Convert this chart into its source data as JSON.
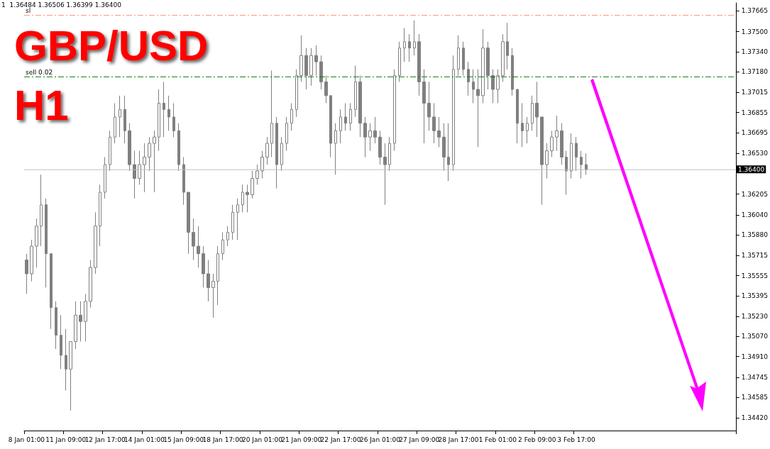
{
  "chart_data": {
    "type": "candlestick",
    "title": "GBP/USD",
    "subtitle": "H1",
    "annotations": [
      "1  1.36484 1.36506 1.36399 1.36400"
    ],
    "categories": [
      "8 Jan 01:00",
      null,
      null,
      null,
      null,
      null,
      null,
      null,
      "11 Jan 09:00",
      null,
      null,
      null,
      null,
      null,
      null,
      null,
      "12 Jan 17:00",
      null,
      null,
      null,
      null,
      null,
      null,
      null,
      "14 Jan 01:00",
      null,
      null,
      null,
      null,
      null,
      null,
      null,
      "15 Jan 09:00",
      null,
      null,
      null,
      null,
      null,
      null,
      null,
      "18 Jan 17:00",
      null,
      null,
      null,
      null,
      null,
      null,
      null,
      "20 Jan 01:00",
      null,
      null,
      null,
      null,
      null,
      null,
      null,
      "21 Jan 09:00",
      null,
      null,
      null,
      null,
      null,
      null,
      null,
      "22 Jan 17:00",
      null,
      null,
      null,
      null,
      null,
      null,
      null,
      "26 Jan 01:00",
      null,
      null,
      null,
      null,
      null,
      null,
      null,
      "27 Jan 09:00",
      null,
      null,
      null,
      null,
      null,
      null,
      null,
      "28 Jan 17:00",
      null,
      null,
      null,
      null,
      null,
      null,
      null,
      "1 Feb 01:00",
      null,
      null,
      null,
      null,
      null,
      null,
      null,
      "2 Feb 09:00",
      null,
      null,
      null,
      null,
      null,
      null,
      null,
      "3 Feb 17:00",
      null,
      null,
      null,
      null,
      null,
      null,
      null,
      null,
      null,
      null,
      null,
      null,
      null,
      null,
      null,
      null,
      null,
      null,
      null,
      null,
      null,
      null,
      null,
      null,
      null,
      null,
      null,
      null,
      null,
      null,
      null,
      null
    ],
    "series": [
      {
        "color": "#808080",
        "ohlc": [
          [
            1.3568,
            1.3573,
            1.3541,
            1.3557
          ],
          [
            1.3557,
            1.3584,
            1.3551,
            1.3579
          ],
          [
            1.3579,
            1.3601,
            1.3562,
            1.3595
          ],
          [
            1.3595,
            1.3636,
            1.3579,
            1.3612
          ],
          [
            1.3612,
            1.3617,
            1.3546,
            1.3573
          ],
          [
            1.3573,
            1.3573,
            1.3513,
            1.353
          ],
          [
            1.353,
            1.3535,
            1.3497,
            1.3508
          ],
          [
            1.3508,
            1.3524,
            1.3481,
            1.3492
          ],
          [
            1.3492,
            1.3513,
            1.3464,
            1.3481
          ],
          [
            1.3481,
            1.3503,
            1.3448,
            1.3503
          ],
          [
            1.3503,
            1.3535,
            1.3497,
            1.3524
          ],
          [
            1.3524,
            1.3535,
            1.3503,
            1.3519
          ],
          [
            1.3519,
            1.3541,
            1.3503,
            1.3535
          ],
          [
            1.3535,
            1.3568,
            1.353,
            1.3562
          ],
          [
            1.3562,
            1.3606,
            1.3557,
            1.3595
          ],
          [
            1.3595,
            1.3628,
            1.3579,
            1.3622
          ],
          [
            1.3622,
            1.365,
            1.3617,
            1.3644
          ],
          [
            1.3644,
            1.3671,
            1.3639,
            1.3666
          ],
          [
            1.3666,
            1.3693,
            1.3661,
            1.3682
          ],
          [
            1.3682,
            1.3699,
            1.3666,
            1.3688
          ],
          [
            1.3688,
            1.3699,
            1.3661,
            1.3671
          ],
          [
            1.3671,
            1.3677,
            1.3639,
            1.3644
          ],
          [
            1.3644,
            1.3655,
            1.3617,
            1.3633
          ],
          [
            1.3633,
            1.3655,
            1.3628,
            1.3644
          ],
          [
            1.3644,
            1.3661,
            1.3622,
            1.365
          ],
          [
            1.365,
            1.3666,
            1.3639,
            1.3661
          ],
          [
            1.3661,
            1.3671,
            1.3622,
            1.3666
          ],
          [
            1.3666,
            1.3704,
            1.3655,
            1.3693
          ],
          [
            1.3693,
            1.371,
            1.3666,
            1.3688
          ],
          [
            1.3688,
            1.3699,
            1.3671,
            1.3682
          ],
          [
            1.3682,
            1.3693,
            1.3666,
            1.3671
          ],
          [
            1.3671,
            1.3677,
            1.3639,
            1.3644
          ],
          [
            1.3644,
            1.365,
            1.3612,
            1.3622
          ],
          [
            1.3622,
            1.3622,
            1.3573,
            1.359
          ],
          [
            1.359,
            1.3601,
            1.3568,
            1.3579
          ],
          [
            1.3579,
            1.3595,
            1.3562,
            1.3573
          ],
          [
            1.3573,
            1.3579,
            1.3546,
            1.3557
          ],
          [
            1.3557,
            1.3568,
            1.3535,
            1.3546
          ],
          [
            1.3546,
            1.3557,
            1.3522,
            1.3551
          ],
          [
            1.3551,
            1.3579,
            1.3532,
            1.3573
          ],
          [
            1.3573,
            1.359,
            1.3568,
            1.3584
          ],
          [
            1.3584,
            1.3595,
            1.3579,
            1.359
          ],
          [
            1.359,
            1.3612,
            1.3584,
            1.3606
          ],
          [
            1.3606,
            1.3617,
            1.3584,
            1.3612
          ],
          [
            1.3612,
            1.3628,
            1.3606,
            1.3622
          ],
          [
            1.3622,
            1.3628,
            1.3606,
            1.362
          ],
          [
            1.362,
            1.3639,
            1.3617,
            1.3633
          ],
          [
            1.3633,
            1.3644,
            1.3628,
            1.3639
          ],
          [
            1.3639,
            1.3655,
            1.3633,
            1.365
          ],
          [
            1.365,
            1.3666,
            1.3644,
            1.3661
          ],
          [
            1.3661,
            1.3719,
            1.365,
            1.3677
          ],
          [
            1.3677,
            1.3682,
            1.3625,
            1.3644
          ],
          [
            1.3644,
            1.3666,
            1.3639,
            1.3661
          ],
          [
            1.3661,
            1.3682,
            1.3655,
            1.3677
          ],
          [
            1.3677,
            1.3693,
            1.3671,
            1.3688
          ],
          [
            1.3688,
            1.372,
            1.3682,
            1.3715
          ],
          [
            1.3715,
            1.3747,
            1.371,
            1.3731
          ],
          [
            1.3731,
            1.3737,
            1.3704,
            1.3715
          ],
          [
            1.3715,
            1.3737,
            1.3707,
            1.3731
          ],
          [
            1.3731,
            1.3739,
            1.3715,
            1.3726
          ],
          [
            1.3726,
            1.3731,
            1.3704,
            1.371
          ],
          [
            1.371,
            1.3715,
            1.3693,
            1.3699
          ],
          [
            1.3699,
            1.3699,
            1.365,
            1.3661
          ],
          [
            1.3661,
            1.3677,
            1.3636,
            1.3671
          ],
          [
            1.3671,
            1.3688,
            1.3661,
            1.3682
          ],
          [
            1.3682,
            1.3693,
            1.3671,
            1.3677
          ],
          [
            1.3677,
            1.3693,
            1.3671,
            1.3688
          ],
          [
            1.3688,
            1.3723,
            1.3682,
            1.371
          ],
          [
            1.371,
            1.3715,
            1.3666,
            1.3677
          ],
          [
            1.3677,
            1.3682,
            1.365,
            1.3666
          ],
          [
            1.3666,
            1.3677,
            1.3655,
            1.3671
          ],
          [
            1.3671,
            1.3682,
            1.3661,
            1.3666
          ],
          [
            1.3666,
            1.3671,
            1.3644,
            1.365
          ],
          [
            1.365,
            1.3661,
            1.3612,
            1.3644
          ],
          [
            1.3644,
            1.3666,
            1.3639,
            1.3661
          ],
          [
            1.3661,
            1.372,
            1.3655,
            1.3715
          ],
          [
            1.3715,
            1.3742,
            1.371,
            1.3737
          ],
          [
            1.3737,
            1.3753,
            1.3726,
            1.3742
          ],
          [
            1.3742,
            1.3748,
            1.3726,
            1.3737
          ],
          [
            1.3737,
            1.3759,
            1.3731,
            1.3742
          ],
          [
            1.3742,
            1.3748,
            1.3699,
            1.371
          ],
          [
            1.371,
            1.372,
            1.3661,
            1.3693
          ],
          [
            1.3693,
            1.371,
            1.3671,
            1.3682
          ],
          [
            1.3682,
            1.3693,
            1.3661,
            1.3671
          ],
          [
            1.3671,
            1.3682,
            1.3658,
            1.3666
          ],
          [
            1.3666,
            1.3677,
            1.3639,
            1.365
          ],
          [
            1.365,
            1.3677,
            1.3631,
            1.3644
          ],
          [
            1.3644,
            1.3731,
            1.3639,
            1.372
          ],
          [
            1.372,
            1.3747,
            1.3715,
            1.3737
          ],
          [
            1.3737,
            1.3742,
            1.3715,
            1.372
          ],
          [
            1.372,
            1.3726,
            1.3699,
            1.371
          ],
          [
            1.371,
            1.372,
            1.3693,
            1.3704
          ],
          [
            1.3704,
            1.372,
            1.3658,
            1.3699
          ],
          [
            1.3699,
            1.3752,
            1.3693,
            1.3737
          ],
          [
            1.3737,
            1.3742,
            1.3704,
            1.3715
          ],
          [
            1.3715,
            1.372,
            1.3693,
            1.3704
          ],
          [
            1.3704,
            1.372,
            1.3693,
            1.3715
          ],
          [
            1.3715,
            1.3748,
            1.371,
            1.3742
          ],
          [
            1.3742,
            1.3757,
            1.372,
            1.3731
          ],
          [
            1.3731,
            1.3737,
            1.3699,
            1.3704
          ],
          [
            1.3704,
            1.3704,
            1.3661,
            1.3677
          ],
          [
            1.3677,
            1.3693,
            1.3658,
            1.3671
          ],
          [
            1.3671,
            1.3682,
            1.3661,
            1.3677
          ],
          [
            1.3677,
            1.3699,
            1.3671,
            1.3693
          ],
          [
            1.3693,
            1.371,
            1.3666,
            1.3682
          ],
          [
            1.3682,
            1.3682,
            1.3612,
            1.3644
          ],
          [
            1.3644,
            1.3661,
            1.3633,
            1.3655
          ],
          [
            1.3655,
            1.3671,
            1.365,
            1.3666
          ],
          [
            1.3666,
            1.3683,
            1.3655,
            1.3671
          ],
          [
            1.3671,
            1.3677,
            1.3644,
            1.365
          ],
          [
            1.365,
            1.3655,
            1.362,
            1.3639
          ],
          [
            1.3639,
            1.3669,
            1.3633,
            1.3661
          ],
          [
            1.3661,
            1.3666,
            1.3639,
            1.365
          ],
          [
            1.365,
            1.3655,
            1.3633,
            1.3644
          ],
          [
            1.3644,
            1.3653,
            1.3636,
            1.364
          ],
          null,
          null,
          null,
          null,
          null,
          null,
          null,
          null,
          null,
          null,
          null,
          null,
          null,
          null,
          null,
          null,
          null,
          null,
          null,
          null,
          null,
          null,
          null,
          null,
          null,
          null,
          null,
          null,
          null,
          null
        ]
      }
    ],
    "ylim": [
      1.3432,
      1.3773
    ],
    "yticks": [
      1.37665,
      {
        "value": 1.375,
        "label": "1.37500"
      },
      {
        "value": 1.3734,
        "label": "1.37340"
      },
      {
        "value": 1.3718,
        "label": "1.37180"
      },
      1.37015,
      1.36855,
      1.36695,
      {
        "value": 1.3653,
        "label": "1.36530"
      },
      1.36205,
      {
        "value": 1.3604,
        "label": "1.36040"
      },
      {
        "value": 1.3588,
        "label": "1.35880"
      },
      1.35715,
      1.35555,
      1.35395,
      {
        "value": 1.3523,
        "label": "1.35230"
      },
      {
        "value": 1.3507,
        "label": "1.35070"
      },
      {
        "value": 1.3491,
        "label": "1.34910"
      },
      1.34745,
      1.34585,
      {
        "value": 1.3442,
        "label": "1.34420"
      }
    ],
    "ref_lines": [
      {
        "axis": "y",
        "value": 1.3763,
        "label": "sl",
        "color": "#ff9070",
        "line_style": "dashed"
      },
      {
        "axis": "y",
        "value": 1.3714,
        "label": "sell 0.02",
        "color": "#008000",
        "line_style": "dashed"
      },
      {
        "axis": "y",
        "value": 1.364,
        "label": "1.36400",
        "color": "#c0c0c0",
        "line_style": "solid"
      }
    ]
  }
}
